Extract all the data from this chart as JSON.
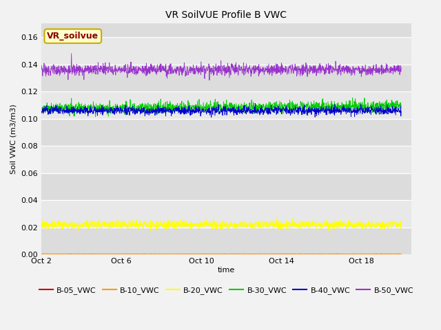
{
  "title": "VR SoilVUE Profile B VWC",
  "xlabel": "time",
  "ylabel": "Soil VWC (m3/m3)",
  "ylim": [
    0.0,
    0.17
  ],
  "yticks": [
    0.0,
    0.02,
    0.04,
    0.06,
    0.08,
    0.1,
    0.12,
    0.14,
    0.16
  ],
  "xtick_labels": [
    "Oct 2",
    "Oct 6",
    "Oct 10",
    "Oct 14",
    "Oct 18"
  ],
  "xtick_positions": [
    0,
    4,
    8,
    12,
    16
  ],
  "xlim": [
    0,
    18.5
  ],
  "bg_color": "#dcdcdc",
  "series": [
    {
      "name": "B-05_VWC",
      "color": "#cc0000",
      "mean": 0.0,
      "noise": 8e-05,
      "trend": 0.0
    },
    {
      "name": "B-10_VWC",
      "color": "#ff9900",
      "mean": 0.0005,
      "noise": 8e-05,
      "trend": 0.0
    },
    {
      "name": "B-20_VWC",
      "color": "#ffff00",
      "mean": 0.022,
      "noise": 0.0015,
      "trend": 0.0
    },
    {
      "name": "B-30_VWC",
      "color": "#00cc00",
      "mean": 0.1075,
      "noise": 0.002,
      "trend": 0.002
    },
    {
      "name": "B-40_VWC",
      "color": "#0000cc",
      "mean": 0.106,
      "noise": 0.0015,
      "trend": 0.0
    },
    {
      "name": "B-50_VWC",
      "color": "#9933cc",
      "mean": 0.136,
      "noise": 0.002,
      "trend": 0.0
    }
  ],
  "legend_label": "VR_soilvue",
  "legend_bg": "#ffffcc",
  "legend_edge": "#ccaa00",
  "legend_text_color": "#880000",
  "n_points": 1500,
  "linewidth": 0.6,
  "title_fontsize": 10,
  "axis_fontsize": 8,
  "tick_fontsize": 8
}
